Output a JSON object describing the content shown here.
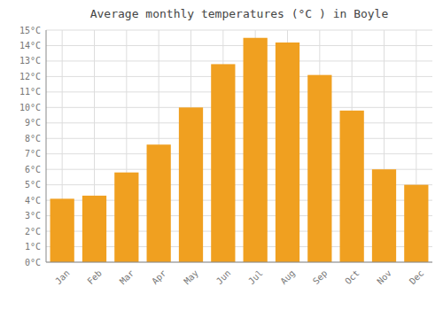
{
  "chart_data": {
    "type": "bar",
    "title": "Average monthly temperatures (°C ) in Boyle",
    "categories": [
      "Jan",
      "Feb",
      "Mar",
      "Apr",
      "May",
      "Jun",
      "Jul",
      "Aug",
      "Sep",
      "Oct",
      "Nov",
      "Dec"
    ],
    "values": [
      4.1,
      4.3,
      5.8,
      7.6,
      10.0,
      12.8,
      14.5,
      14.2,
      12.1,
      9.8,
      6.0,
      5.0
    ],
    "color": "#F0A020",
    "ylim": [
      0,
      15
    ],
    "yticks": [
      {
        "value": 0,
        "label": "0°C"
      },
      {
        "value": 1,
        "label": "1°C"
      },
      {
        "value": 2,
        "label": "2°C"
      },
      {
        "value": 3,
        "label": "3°C"
      },
      {
        "value": 4,
        "label": "4°C"
      },
      {
        "value": 5,
        "label": "5°C"
      },
      {
        "value": 6,
        "label": "6°C"
      },
      {
        "value": 7,
        "label": "7°C"
      },
      {
        "value": 8,
        "label": "8°C"
      },
      {
        "value": 9,
        "label": "9°C"
      },
      {
        "value": 10,
        "label": "10°C"
      },
      {
        "value": 11,
        "label": "11°C"
      },
      {
        "value": 12,
        "label": "12°C"
      },
      {
        "value": 13,
        "label": "13°C"
      },
      {
        "value": 14,
        "label": "14°C"
      },
      {
        "value": 15,
        "label": "15°C"
      }
    ],
    "grid": true
  }
}
